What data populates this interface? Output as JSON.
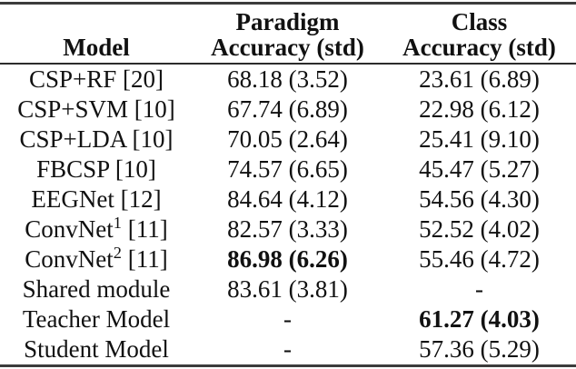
{
  "table": {
    "header": {
      "model_label": "Model",
      "paradigm_line1": "Paradigm",
      "paradigm_line2": "Accuracy (std)",
      "class_line1": "Class",
      "class_line2": "Accuracy (std)"
    },
    "rows": [
      {
        "model": "CSP+RF [20]",
        "sup": "",
        "ref": "",
        "paradigm_acc": "68.18 (3.52)",
        "class_acc": "23.61 (6.89)",
        "paradigm_bold": false,
        "class_bold": false
      },
      {
        "model": "CSP+SVM [10]",
        "sup": "",
        "ref": "",
        "paradigm_acc": "67.74 (6.89)",
        "class_acc": "22.98 (6.12)",
        "paradigm_bold": false,
        "class_bold": false
      },
      {
        "model": "CSP+LDA [10]",
        "sup": "",
        "ref": "",
        "paradigm_acc": "70.05 (2.64)",
        "class_acc": "25.41 (9.10)",
        "paradigm_bold": false,
        "class_bold": false
      },
      {
        "model": "FBCSP [10]",
        "sup": "",
        "ref": "",
        "paradigm_acc": "74.57 (6.65)",
        "class_acc": "45.47 (5.27)",
        "paradigm_bold": false,
        "class_bold": false
      },
      {
        "model": "EEGNet [12]",
        "sup": "",
        "ref": "",
        "paradigm_acc": "84.64 (4.12)",
        "class_acc": "54.56 (4.30)",
        "paradigm_bold": false,
        "class_bold": false
      },
      {
        "model": "ConvNet",
        "sup": "1",
        "ref": " [11]",
        "paradigm_acc": "82.57 (3.33)",
        "class_acc": "52.52 (4.02)",
        "paradigm_bold": false,
        "class_bold": false
      },
      {
        "model": "ConvNet",
        "sup": "2",
        "ref": " [11]",
        "paradigm_acc": "86.98 (6.26)",
        "class_acc": "55.46 (4.72)",
        "paradigm_bold": true,
        "class_bold": false
      },
      {
        "model": "Shared module",
        "sup": "",
        "ref": "",
        "paradigm_acc": "83.61 (3.81)",
        "class_acc": "-",
        "paradigm_bold": false,
        "class_bold": false
      },
      {
        "model": "Teacher Model",
        "sup": "",
        "ref": "",
        "paradigm_acc": "-",
        "class_acc": "61.27 (4.03)",
        "paradigm_bold": false,
        "class_bold": true
      },
      {
        "model": "Student Model",
        "sup": "",
        "ref": "",
        "paradigm_acc": "-",
        "class_acc": "57.36 (5.29)",
        "paradigm_bold": false,
        "class_bold": false
      }
    ]
  },
  "colors": {
    "text": "#111111",
    "rule_thick": "#3c3c3c",
    "rule_thin": "#2c2c2c",
    "background": "#ffffff"
  }
}
